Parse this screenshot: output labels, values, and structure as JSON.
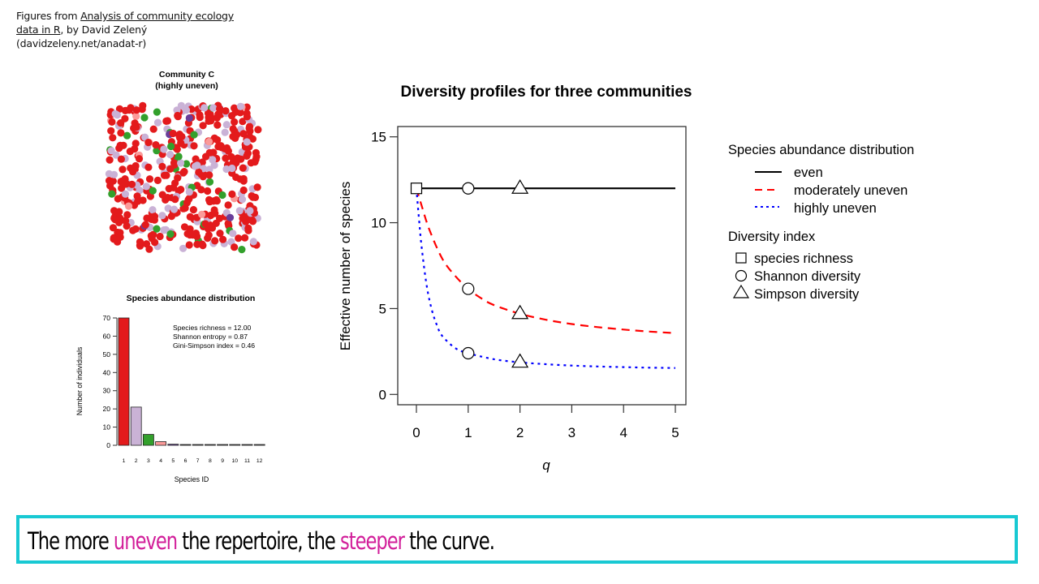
{
  "credit": {
    "prefix": "Figures from ",
    "link_line1": "Analysis of community ecology",
    "link_line2": "data in R",
    "suffix": ", by David Zelený",
    "url": "(davidzeleny.net/anadat-r)"
  },
  "caption": {
    "part1": "The more ",
    "highlight1": "uneven",
    "part2": " the repertoire, the ",
    "highlight2": "steeper",
    "part3": " the curve.",
    "highlight_color": "#d21f9a",
    "border_color": "#18c9d3"
  },
  "chart_data": [
    {
      "type": "scatter",
      "title": "Community C",
      "subtitle": "(highly uneven)",
      "description": "Random point pattern of individuals colored by species",
      "species_colors": [
        "#e31a1c",
        "#cab2d6",
        "#33a02c",
        "#fb9a99",
        "#6a3d9a"
      ],
      "individuals_by_species": [
        70,
        21,
        6,
        2,
        1
      ]
    },
    {
      "type": "bar",
      "title": "Species abundance distribution",
      "xlabel": "Species ID",
      "ylabel": "Number of individuals",
      "categories": [
        "1",
        "2",
        "3",
        "4",
        "5",
        "6",
        "7",
        "8",
        "9",
        "10",
        "11",
        "12"
      ],
      "values": [
        70,
        21,
        6,
        2,
        0.6,
        0.3,
        0.2,
        0.2,
        0.2,
        0.2,
        0.2,
        0.2
      ],
      "bar_colors": [
        "#e31a1c",
        "#cab2d6",
        "#33a02c",
        "#fb9a99",
        "#6a3d9a",
        "#555555",
        "#777777",
        "#777777",
        "#777777",
        "#777777",
        "#777777",
        "#777777"
      ],
      "ylim": [
        0,
        70
      ],
      "yticks": [
        0,
        10,
        20,
        30,
        40,
        50,
        60,
        70
      ],
      "annotations": [
        "Species richness = 12.00",
        "Shannon entropy = 0.87",
        "Gini-Simpson index = 0.46"
      ]
    },
    {
      "type": "line",
      "title": "Diversity profiles for three communities",
      "xlabel": "q",
      "ylabel": "Effective number of species",
      "xlim": [
        0,
        5
      ],
      "ylim": [
        -0.6,
        15.6
      ],
      "xticks": [
        0,
        1,
        2,
        3,
        4,
        5
      ],
      "yticks": [
        0,
        5,
        10,
        15
      ],
      "grid": false,
      "series": [
        {
          "name": "even",
          "color": "#000000",
          "style": "solid",
          "x": [
            0,
            0.5,
            1,
            1.5,
            2,
            2.5,
            3,
            3.5,
            4,
            4.5,
            5
          ],
          "values": [
            12,
            12,
            12,
            12,
            12,
            12,
            12,
            12,
            12,
            12,
            12
          ]
        },
        {
          "name": "moderately uneven",
          "color": "#ff0000",
          "style": "dashed",
          "x": [
            0,
            0.1,
            0.25,
            0.5,
            0.75,
            1,
            1.25,
            1.5,
            2,
            2.5,
            3,
            3.5,
            4,
            4.5,
            5
          ],
          "values": [
            12,
            11.0,
            9.6,
            7.9,
            6.9,
            6.15,
            5.6,
            5.2,
            4.7,
            4.35,
            4.1,
            3.92,
            3.78,
            3.66,
            3.57
          ]
        },
        {
          "name": "highly uneven",
          "color": "#0000ff",
          "style": "dotted",
          "x": [
            0,
            0.05,
            0.1,
            0.2,
            0.3,
            0.4,
            0.5,
            0.75,
            1,
            1.5,
            2,
            2.5,
            3,
            3.5,
            4,
            4.5,
            5
          ],
          "values": [
            12,
            10.2,
            8.6,
            6.3,
            4.9,
            4.0,
            3.4,
            2.7,
            2.4,
            2.05,
            1.87,
            1.76,
            1.68,
            1.63,
            1.59,
            1.56,
            1.54
          ]
        }
      ],
      "markers": [
        {
          "series": "even",
          "index": "species richness",
          "shape": "square",
          "x": 0,
          "y": 12
        },
        {
          "series": "even",
          "index": "Shannon diversity",
          "shape": "circle",
          "x": 1,
          "y": 12
        },
        {
          "series": "even",
          "index": "Simpson diversity",
          "shape": "triangle",
          "x": 2,
          "y": 12
        },
        {
          "series": "moderately uneven",
          "index": "Shannon diversity",
          "shape": "circle",
          "x": 1,
          "y": 6.15
        },
        {
          "series": "moderately uneven",
          "index": "Simpson diversity",
          "shape": "triangle",
          "x": 2,
          "y": 4.7
        },
        {
          "series": "highly uneven",
          "index": "Shannon diversity",
          "shape": "circle",
          "x": 1,
          "y": 2.4
        },
        {
          "series": "highly uneven",
          "index": "Simpson diversity",
          "shape": "triangle",
          "x": 2,
          "y": 1.87
        }
      ],
      "legend": {
        "placement": "right",
        "group1_title": "Species abundance distribution",
        "group1_items": [
          {
            "label": "even",
            "color": "#000000",
            "style": "solid"
          },
          {
            "label": "moderately uneven",
            "color": "#ff0000",
            "style": "dashed"
          },
          {
            "label": "highly uneven",
            "color": "#0000ff",
            "style": "dotted"
          }
        ],
        "group2_title": "Diversity index",
        "group2_items": [
          {
            "label": "species richness",
            "shape": "square"
          },
          {
            "label": "Shannon diversity",
            "shape": "circle"
          },
          {
            "label": "Simpson diversity",
            "shape": "triangle"
          }
        ]
      }
    }
  ]
}
